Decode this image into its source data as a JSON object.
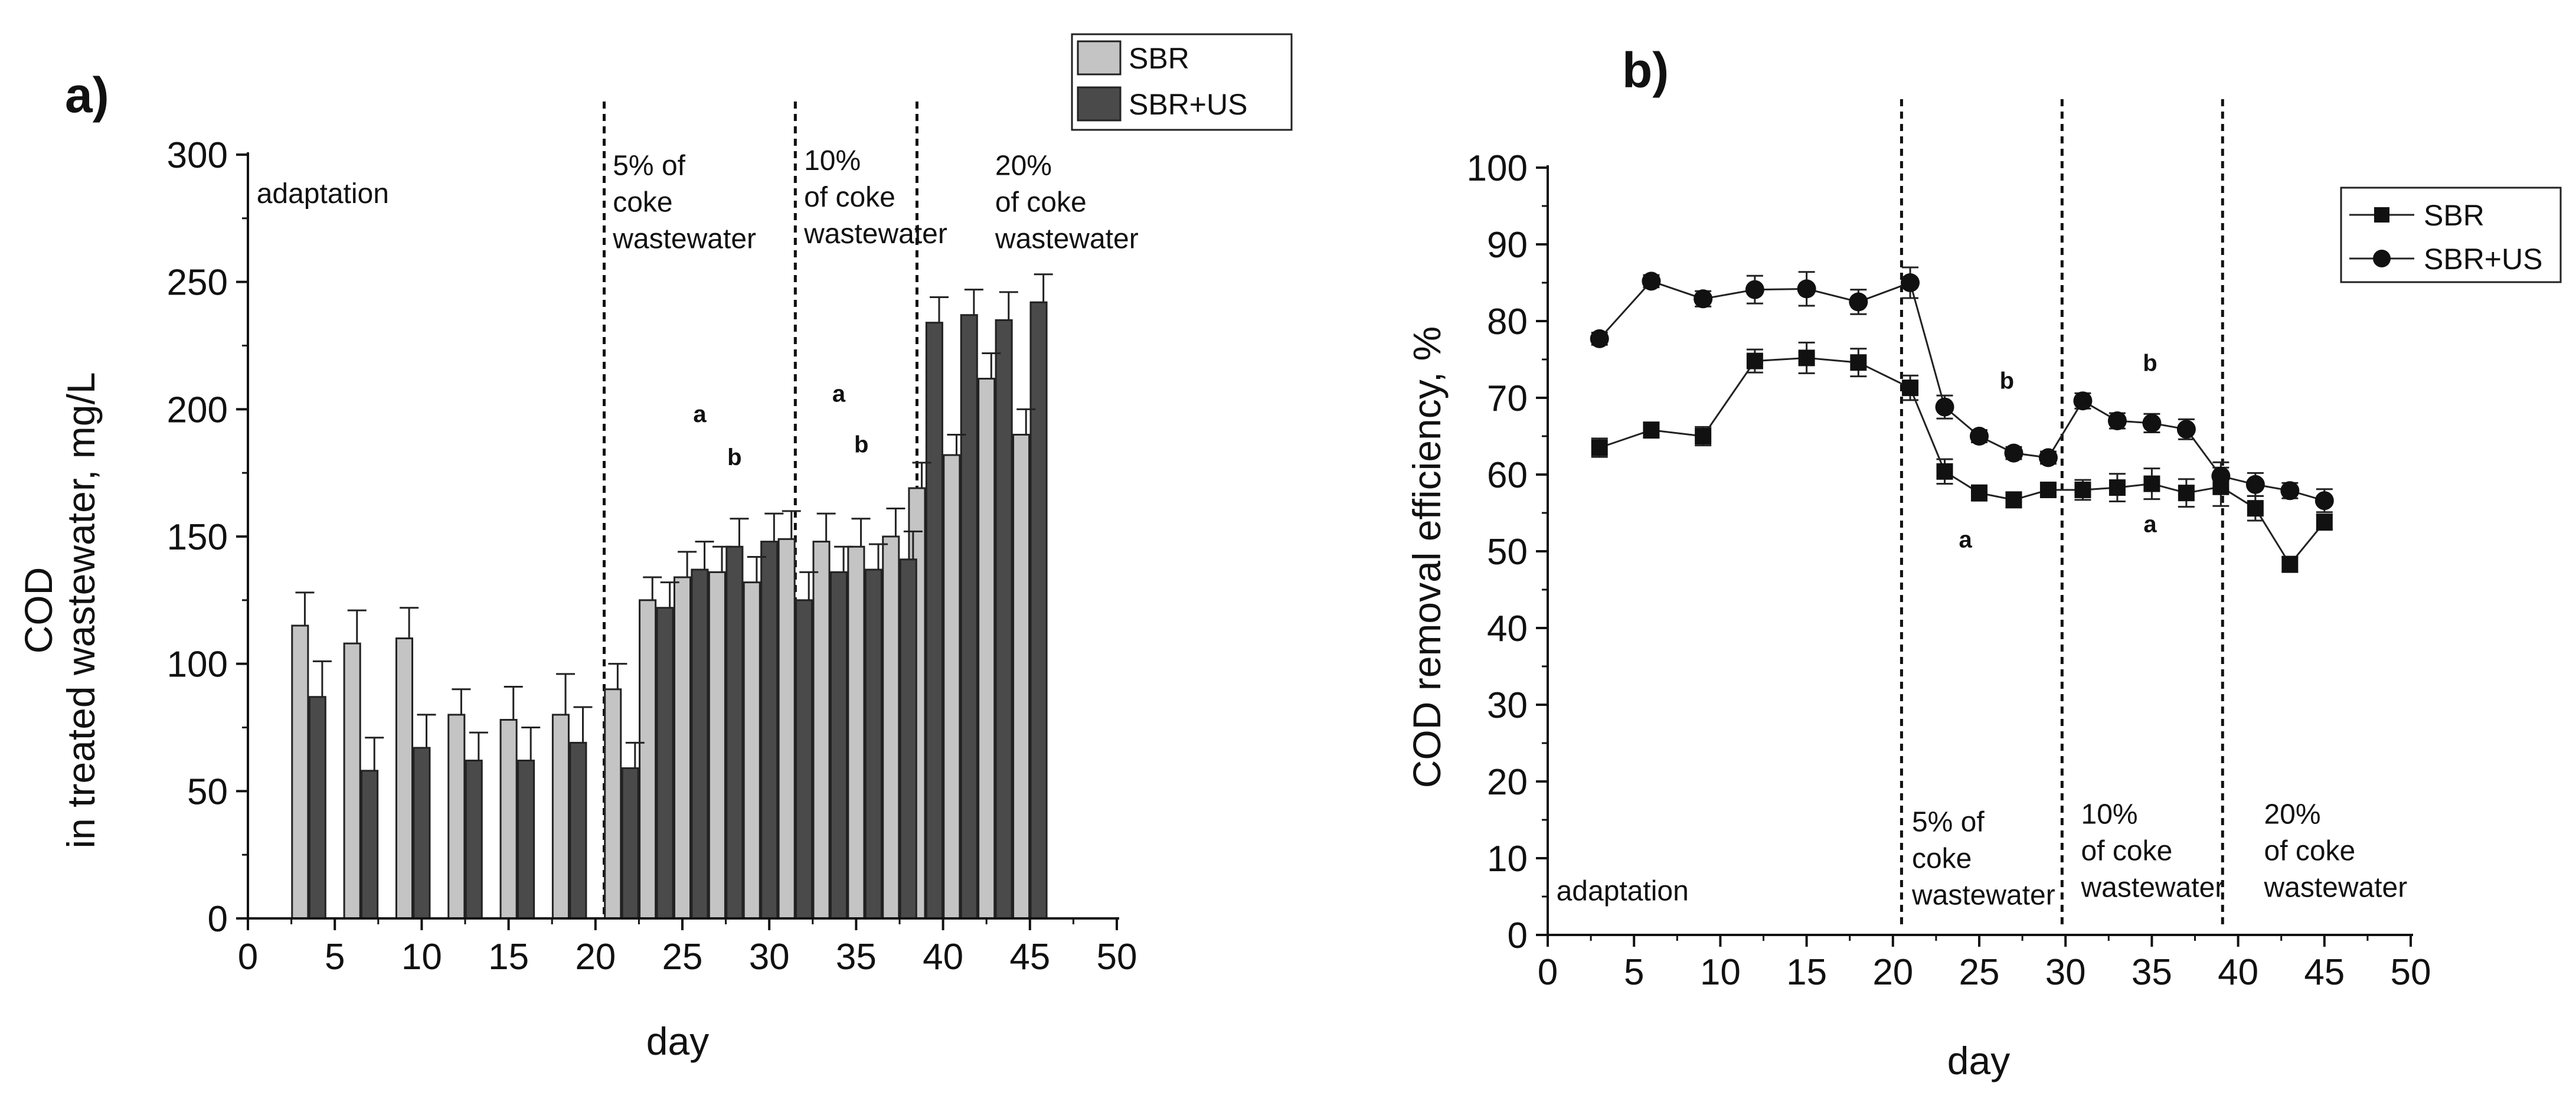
{
  "chart_data": [
    {
      "panel": "a)",
      "type": "bar",
      "title": "",
      "xlabel": "day",
      "ylabel_line1": "COD",
      "ylabel_line2": "in treated wastewater, mg/L",
      "xlim": [
        0,
        50
      ],
      "ylim": [
        0,
        300
      ],
      "xticks": [
        0,
        5,
        10,
        15,
        20,
        25,
        30,
        35,
        40,
        45,
        50
      ],
      "yticks": [
        0,
        50,
        100,
        150,
        200,
        250,
        300
      ],
      "grid": false,
      "legend_position": "top-right",
      "series": [
        {
          "name": "SBR",
          "color": "#c4c4c4",
          "x": [
            3,
            6,
            9,
            12,
            15,
            18,
            21,
            23,
            25,
            27,
            29,
            31,
            33,
            35,
            37,
            38.5,
            40.5,
            42.5,
            44.5
          ],
          "values": [
            115,
            108,
            110,
            80,
            78,
            80,
            90,
            125,
            134,
            136,
            132,
            149,
            148,
            146,
            150,
            169,
            182,
            212,
            190
          ],
          "errors": [
            13,
            13,
            12,
            10,
            13,
            16,
            10,
            9,
            10,
            10,
            10,
            11,
            11,
            11,
            11,
            10,
            8,
            10,
            10
          ]
        },
        {
          "name": "SBR+US",
          "color": "#4a4a4a",
          "x": [
            4,
            7,
            10,
            13,
            16,
            19,
            22,
            24,
            26,
            28,
            30,
            32,
            34,
            36,
            38,
            39.5,
            41.5,
            43.5,
            45.5
          ],
          "values": [
            87,
            58,
            67,
            62,
            62,
            69,
            59,
            122,
            137,
            146,
            148,
            125,
            136,
            137,
            141,
            234,
            237,
            235,
            242
          ],
          "errors": [
            14,
            13,
            13,
            11,
            13,
            14,
            10,
            10,
            11,
            11,
            11,
            11,
            10,
            10,
            11,
            10,
            10,
            11,
            11
          ]
        }
      ],
      "phase_dividers_day": [
        20.5,
        31.5,
        38.5
      ],
      "annotations": [
        {
          "text": [
            "adaptation"
          ],
          "x": 0.5,
          "y": 281
        },
        {
          "text": [
            "5% of",
            "coke",
            "wastewater"
          ],
          "x": 21,
          "y": 292
        },
        {
          "text": [
            "10%",
            "of coke",
            "wastewater"
          ],
          "x": 32,
          "y": 294
        },
        {
          "text": [
            "20%",
            "of coke",
            "wastewater"
          ],
          "x": 43,
          "y": 292
        }
      ],
      "significance": [
        {
          "text": "a",
          "x": 26,
          "y": 195
        },
        {
          "text": "b",
          "x": 28,
          "y": 178
        },
        {
          "text": "a",
          "x": 34,
          "y": 203
        },
        {
          "text": "b",
          "x": 35.3,
          "y": 183
        }
      ]
    },
    {
      "panel": "b)",
      "type": "line",
      "title": "",
      "xlabel": "day",
      "ylabel": "COD removal efficiency, %",
      "xlim": [
        0,
        50
      ],
      "ylim": [
        0,
        100
      ],
      "xticks": [
        0,
        5,
        10,
        15,
        20,
        25,
        30,
        35,
        40,
        45,
        50
      ],
      "yticks": [
        0,
        10,
        20,
        30,
        40,
        50,
        60,
        70,
        80,
        90,
        100
      ],
      "grid": false,
      "legend_position": "top-right",
      "series": [
        {
          "name": "SBR",
          "marker": "square",
          "x": [
            3,
            6,
            9,
            12,
            15,
            18,
            21,
            23,
            25,
            27,
            29,
            31,
            33,
            35,
            37,
            39,
            41,
            43,
            45
          ],
          "values": [
            63.5,
            65.8,
            65,
            74.8,
            75.2,
            74.6,
            71.3,
            60.4,
            57.6,
            56.7,
            58,
            58,
            58.3,
            58.8,
            57.6,
            58.4,
            55.6,
            48.3,
            53.8
          ],
          "errors": [
            1.2,
            1.0,
            1.2,
            1.5,
            2.0,
            1.8,
            1.6,
            1.6,
            1.0,
            1.0,
            0.8,
            1.3,
            1.8,
            2.0,
            1.8,
            2.5,
            1.6,
            1.0,
            1.0
          ]
        },
        {
          "name": "SBR+US",
          "marker": "circle",
          "x": [
            3,
            6,
            9,
            12,
            15,
            18,
            21,
            23,
            25,
            27,
            29,
            31,
            33,
            35,
            37,
            39,
            41,
            43,
            45
          ],
          "values": [
            77.7,
            85.2,
            82.9,
            84.1,
            84.2,
            82.5,
            85,
            68.8,
            65,
            62.8,
            62.2,
            69.6,
            67,
            66.7,
            65.9,
            59.8,
            58.7,
            57.9,
            56.6
          ],
          "errors": [
            0.8,
            0.8,
            1.0,
            1.8,
            2.2,
            1.6,
            2.0,
            1.5,
            0.8,
            0.8,
            0.8,
            1.0,
            1.0,
            1.2,
            1.3,
            1.8,
            1.5,
            1.0,
            1.5
          ]
        }
      ],
      "phase_dividers_day": [
        20.5,
        29.8,
        39.1
      ],
      "annotations": [
        {
          "text": [
            "adaptation"
          ],
          "x": 0.5,
          "y": 4.5
        },
        {
          "text": [
            "5% of",
            "coke",
            "wastewater"
          ],
          "x": 21.1,
          "y": 13.5
        },
        {
          "text": [
            "10%",
            "of coke",
            "wastewater"
          ],
          "x": 30.9,
          "y": 14.5
        },
        {
          "text": [
            "20%",
            "of coke",
            "wastewater"
          ],
          "x": 41.5,
          "y": 14.5
        }
      ],
      "significance": [
        {
          "text": "b",
          "x": 26.6,
          "y": 71.2
        },
        {
          "text": "a",
          "x": 24.2,
          "y": 50.5
        },
        {
          "text": "b",
          "x": 34.9,
          "y": 73.5
        },
        {
          "text": "a",
          "x": 34.9,
          "y": 52.5
        }
      ]
    }
  ]
}
